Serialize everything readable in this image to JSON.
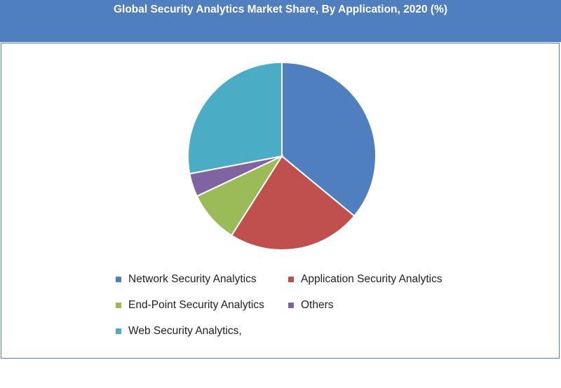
{
  "chart_data": {
    "type": "pie",
    "title": "Global Security Analytics Market Share, By Application, 2020 (%)",
    "categories": [
      "Network Security Analytics",
      "Application Security Analytics",
      "End-Point Security Analytics",
      "Others",
      "Web Security Analytics,"
    ],
    "values": [
      36,
      23,
      9,
      4,
      28
    ],
    "colors": [
      "#4f7fbf",
      "#c0504d",
      "#9bbb59",
      "#8064a2",
      "#4bacc6"
    ],
    "legend_position": "bottom"
  }
}
